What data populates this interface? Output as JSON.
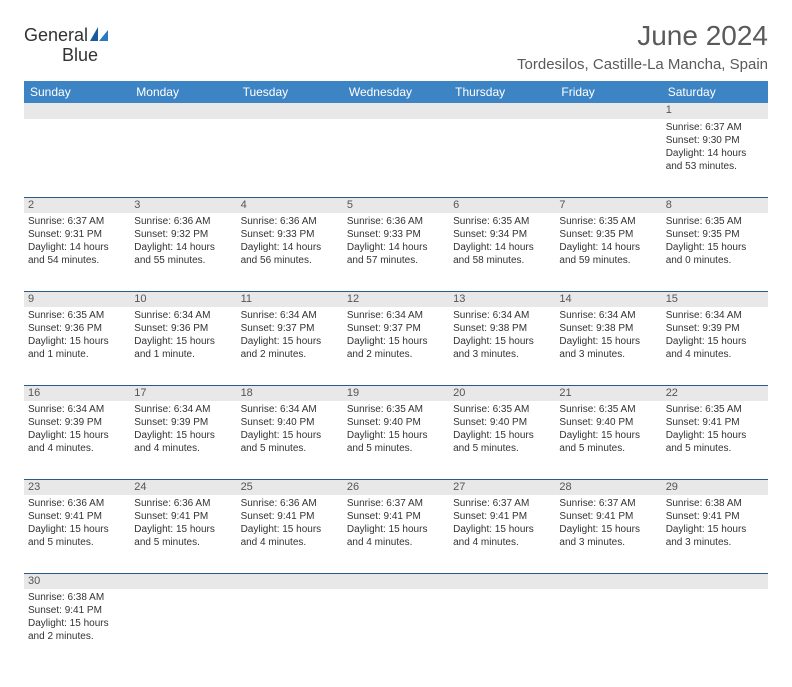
{
  "header": {
    "logo_text1": "General",
    "logo_text2": "Blue",
    "month_title": "June 2024",
    "location": "Tordesilos, Castille-La Mancha, Spain"
  },
  "colors": {
    "header_bg": "#3d84c4",
    "header_text": "#ffffff",
    "daynum_bg": "#e8e8e8",
    "row_border": "#2a5a8a",
    "logo_blue": "#2a7ac0",
    "text_gray": "#5a5a5a"
  },
  "day_labels": [
    "Sunday",
    "Monday",
    "Tuesday",
    "Wednesday",
    "Thursday",
    "Friday",
    "Saturday"
  ],
  "weeks": [
    [
      null,
      null,
      null,
      null,
      null,
      null,
      {
        "n": "1",
        "sr": "6:37 AM",
        "ss": "9:30 PM",
        "dl": "14 hours and 53 minutes."
      }
    ],
    [
      {
        "n": "2",
        "sr": "6:37 AM",
        "ss": "9:31 PM",
        "dl": "14 hours and 54 minutes."
      },
      {
        "n": "3",
        "sr": "6:36 AM",
        "ss": "9:32 PM",
        "dl": "14 hours and 55 minutes."
      },
      {
        "n": "4",
        "sr": "6:36 AM",
        "ss": "9:33 PM",
        "dl": "14 hours and 56 minutes."
      },
      {
        "n": "5",
        "sr": "6:36 AM",
        "ss": "9:33 PM",
        "dl": "14 hours and 57 minutes."
      },
      {
        "n": "6",
        "sr": "6:35 AM",
        "ss": "9:34 PM",
        "dl": "14 hours and 58 minutes."
      },
      {
        "n": "7",
        "sr": "6:35 AM",
        "ss": "9:35 PM",
        "dl": "14 hours and 59 minutes."
      },
      {
        "n": "8",
        "sr": "6:35 AM",
        "ss": "9:35 PM",
        "dl": "15 hours and 0 minutes."
      }
    ],
    [
      {
        "n": "9",
        "sr": "6:35 AM",
        "ss": "9:36 PM",
        "dl": "15 hours and 1 minute."
      },
      {
        "n": "10",
        "sr": "6:34 AM",
        "ss": "9:36 PM",
        "dl": "15 hours and 1 minute."
      },
      {
        "n": "11",
        "sr": "6:34 AM",
        "ss": "9:37 PM",
        "dl": "15 hours and 2 minutes."
      },
      {
        "n": "12",
        "sr": "6:34 AM",
        "ss": "9:37 PM",
        "dl": "15 hours and 2 minutes."
      },
      {
        "n": "13",
        "sr": "6:34 AM",
        "ss": "9:38 PM",
        "dl": "15 hours and 3 minutes."
      },
      {
        "n": "14",
        "sr": "6:34 AM",
        "ss": "9:38 PM",
        "dl": "15 hours and 3 minutes."
      },
      {
        "n": "15",
        "sr": "6:34 AM",
        "ss": "9:39 PM",
        "dl": "15 hours and 4 minutes."
      }
    ],
    [
      {
        "n": "16",
        "sr": "6:34 AM",
        "ss": "9:39 PM",
        "dl": "15 hours and 4 minutes."
      },
      {
        "n": "17",
        "sr": "6:34 AM",
        "ss": "9:39 PM",
        "dl": "15 hours and 4 minutes."
      },
      {
        "n": "18",
        "sr": "6:34 AM",
        "ss": "9:40 PM",
        "dl": "15 hours and 5 minutes."
      },
      {
        "n": "19",
        "sr": "6:35 AM",
        "ss": "9:40 PM",
        "dl": "15 hours and 5 minutes."
      },
      {
        "n": "20",
        "sr": "6:35 AM",
        "ss": "9:40 PM",
        "dl": "15 hours and 5 minutes."
      },
      {
        "n": "21",
        "sr": "6:35 AM",
        "ss": "9:40 PM",
        "dl": "15 hours and 5 minutes."
      },
      {
        "n": "22",
        "sr": "6:35 AM",
        "ss": "9:41 PM",
        "dl": "15 hours and 5 minutes."
      }
    ],
    [
      {
        "n": "23",
        "sr": "6:36 AM",
        "ss": "9:41 PM",
        "dl": "15 hours and 5 minutes."
      },
      {
        "n": "24",
        "sr": "6:36 AM",
        "ss": "9:41 PM",
        "dl": "15 hours and 5 minutes."
      },
      {
        "n": "25",
        "sr": "6:36 AM",
        "ss": "9:41 PM",
        "dl": "15 hours and 4 minutes."
      },
      {
        "n": "26",
        "sr": "6:37 AM",
        "ss": "9:41 PM",
        "dl": "15 hours and 4 minutes."
      },
      {
        "n": "27",
        "sr": "6:37 AM",
        "ss": "9:41 PM",
        "dl": "15 hours and 4 minutes."
      },
      {
        "n": "28",
        "sr": "6:37 AM",
        "ss": "9:41 PM",
        "dl": "15 hours and 3 minutes."
      },
      {
        "n": "29",
        "sr": "6:38 AM",
        "ss": "9:41 PM",
        "dl": "15 hours and 3 minutes."
      }
    ],
    [
      {
        "n": "30",
        "sr": "6:38 AM",
        "ss": "9:41 PM",
        "dl": "15 hours and 2 minutes."
      },
      null,
      null,
      null,
      null,
      null,
      null
    ]
  ],
  "labels": {
    "sunrise_prefix": "Sunrise: ",
    "sunset_prefix": "Sunset: ",
    "daylight_prefix": "Daylight: "
  }
}
